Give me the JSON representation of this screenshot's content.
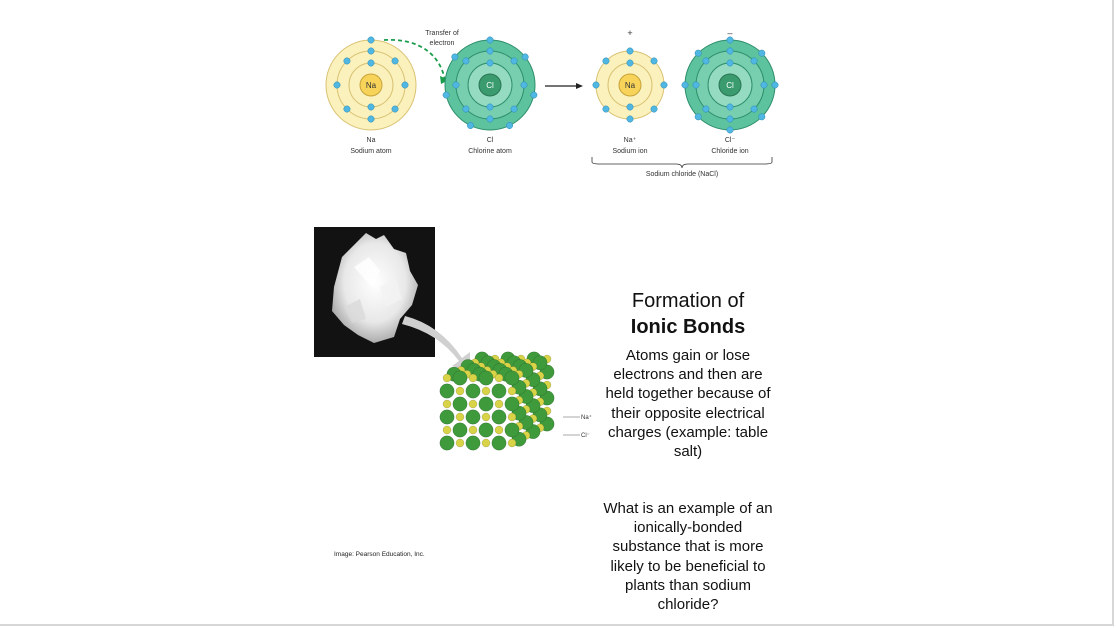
{
  "diagram": {
    "transfer_label": [
      "Transfer of",
      "electron"
    ],
    "atoms": [
      {
        "symbol": "Na",
        "name": "Na",
        "caption": "Sodium atom"
      },
      {
        "symbol": "Cl",
        "name": "Cl",
        "caption": "Chlorine atom"
      }
    ],
    "ions": [
      {
        "symbol": "Na",
        "charge": "+",
        "name": "Na⁺",
        "caption": "Sodium ion"
      },
      {
        "symbol": "Cl",
        "charge": "–",
        "name": "Cl⁻",
        "caption": "Chloride ion"
      }
    ],
    "compound_label": "Sodium chloride (NaCl)",
    "colors": {
      "sodium_ring": "#fbf1bc",
      "sodium_nucleus": "#f7d35a",
      "chlorine_ring": "#3fb08a",
      "electron": "#4fb7e2"
    }
  },
  "lattice": {
    "na_label": "Na⁺",
    "cl_label": "Cl⁻"
  },
  "credit": "Image:  Pearson Education, Inc.",
  "heading": {
    "line1": "Formation of",
    "line2": "Ionic Bonds"
  },
  "body": "Atoms gain or lose electrons and then are held together because of their opposite electrical charges (example: table salt)",
  "question": "What is an example of an ionically-bonded substance that is more likely to be beneficial to plants than sodium chloride?"
}
